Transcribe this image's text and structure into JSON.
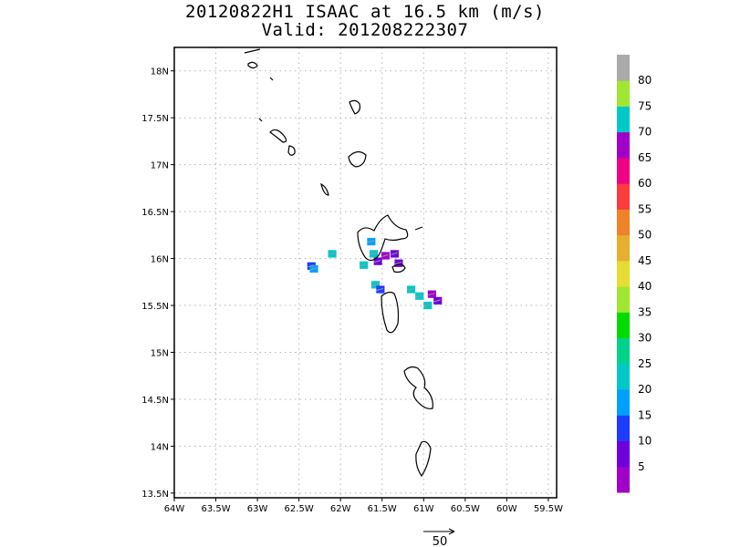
{
  "title": "20120822H1 ISAAC at 16.5 km (m/s)",
  "subtitle": "Valid: 201208222307",
  "chart_data": {
    "type": "heatmap",
    "x_ticks": [
      "64W",
      "63.5W",
      "63W",
      "62.5W",
      "62W",
      "61.5W",
      "61W",
      "60.5W",
      "60W",
      "59.5W"
    ],
    "x_values": [
      -64,
      -63.5,
      -63,
      -62.5,
      -62,
      -61.5,
      -61,
      -60.5,
      -60,
      -59.5
    ],
    "y_ticks": [
      "13.5N",
      "14N",
      "14.5N",
      "15N",
      "15.5N",
      "16N",
      "16.5N",
      "17N",
      "17.5N",
      "18N"
    ],
    "y_values": [
      13.5,
      14,
      14.5,
      15,
      15.5,
      16,
      16.5,
      17,
      17.5,
      18
    ],
    "xlim": [
      -64,
      -59.4
    ],
    "ylim": [
      13.45,
      18.25
    ],
    "grid": true,
    "colorbar": {
      "labels": [
        "5",
        "10",
        "15",
        "20",
        "25",
        "30",
        "35",
        "40",
        "45",
        "50",
        "55",
        "60",
        "65",
        "70",
        "75",
        "80"
      ],
      "colors": [
        "#a000c8",
        "#6e00dc",
        "#1e3cff",
        "#00a0ff",
        "#00c8c8",
        "#00d28c",
        "#00dc00",
        "#a0e632",
        "#e6dc32",
        "#e6af2d",
        "#f08228",
        "#fa3c3c",
        "#f00082",
        "#a000c8",
        "#00c8c8",
        "#a0e632",
        "#aaaaaa"
      ]
    },
    "cells": [
      {
        "lon": -62.35,
        "lat": 15.92,
        "value": 14
      },
      {
        "lon": -62.32,
        "lat": 15.89,
        "value": 18
      },
      {
        "lon": -62.1,
        "lat": 16.05,
        "value": 20
      },
      {
        "lon": -61.72,
        "lat": 15.93,
        "value": 22
      },
      {
        "lon": -61.63,
        "lat": 16.18,
        "value": 18
      },
      {
        "lon": -61.6,
        "lat": 16.05,
        "value": 20
      },
      {
        "lon": -61.55,
        "lat": 15.97,
        "value": 8
      },
      {
        "lon": -61.46,
        "lat": 16.03,
        "value": 4
      },
      {
        "lon": -61.35,
        "lat": 16.05,
        "value": 6
      },
      {
        "lon": -61.3,
        "lat": 15.95,
        "value": 8
      },
      {
        "lon": -61.58,
        "lat": 15.72,
        "value": 20
      },
      {
        "lon": -61.52,
        "lat": 15.67,
        "value": 12
      },
      {
        "lon": -61.15,
        "lat": 15.67,
        "value": 22
      },
      {
        "lon": -61.05,
        "lat": 15.6,
        "value": 20
      },
      {
        "lon": -60.95,
        "lat": 15.5,
        "value": 20
      },
      {
        "lon": -60.9,
        "lat": 15.62,
        "value": 4
      },
      {
        "lon": -60.83,
        "lat": 15.55,
        "value": 6
      }
    ],
    "reference_vector": {
      "label": "50"
    }
  }
}
